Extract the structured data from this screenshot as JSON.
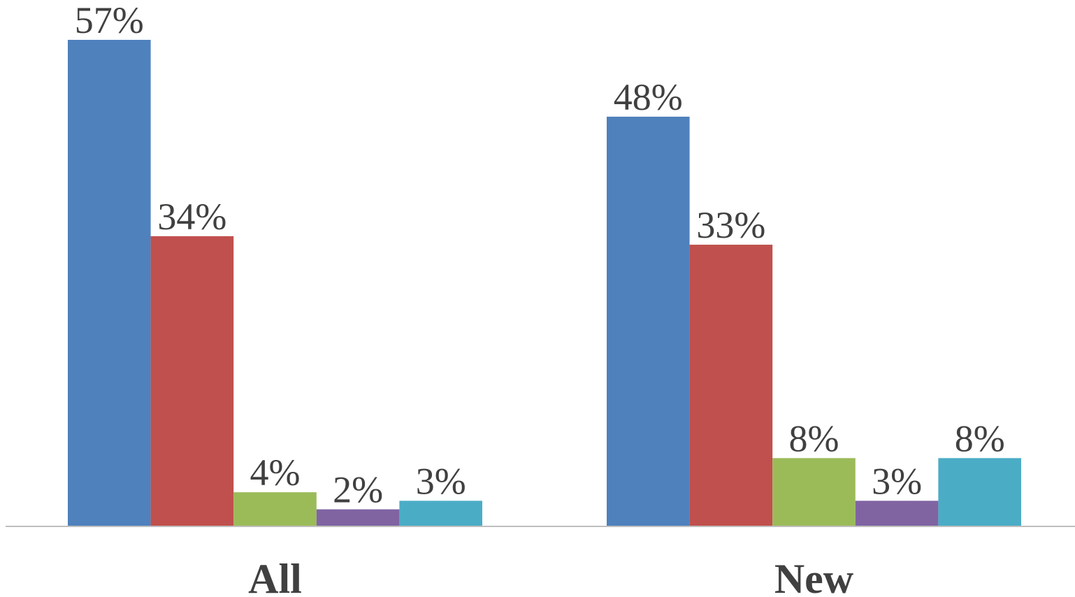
{
  "chart_data": {
    "type": "bar",
    "categories": [
      "All",
      "New"
    ],
    "series": [
      {
        "values": [
          57,
          48
        ],
        "color": "#4F81BD"
      },
      {
        "values": [
          34,
          33
        ],
        "color": "#C0504D"
      },
      {
        "values": [
          4,
          8
        ],
        "color": "#9BBB59"
      },
      {
        "values": [
          2,
          3
        ],
        "color": "#8064A2"
      },
      {
        "values": [
          3,
          8
        ],
        "color": "#4BACC6"
      }
    ],
    "value_suffix": "%",
    "ylim": [
      0,
      57
    ],
    "title": "",
    "xlabel": "",
    "ylabel": "",
    "grid": false,
    "legend": "none",
    "data_labels": true
  }
}
